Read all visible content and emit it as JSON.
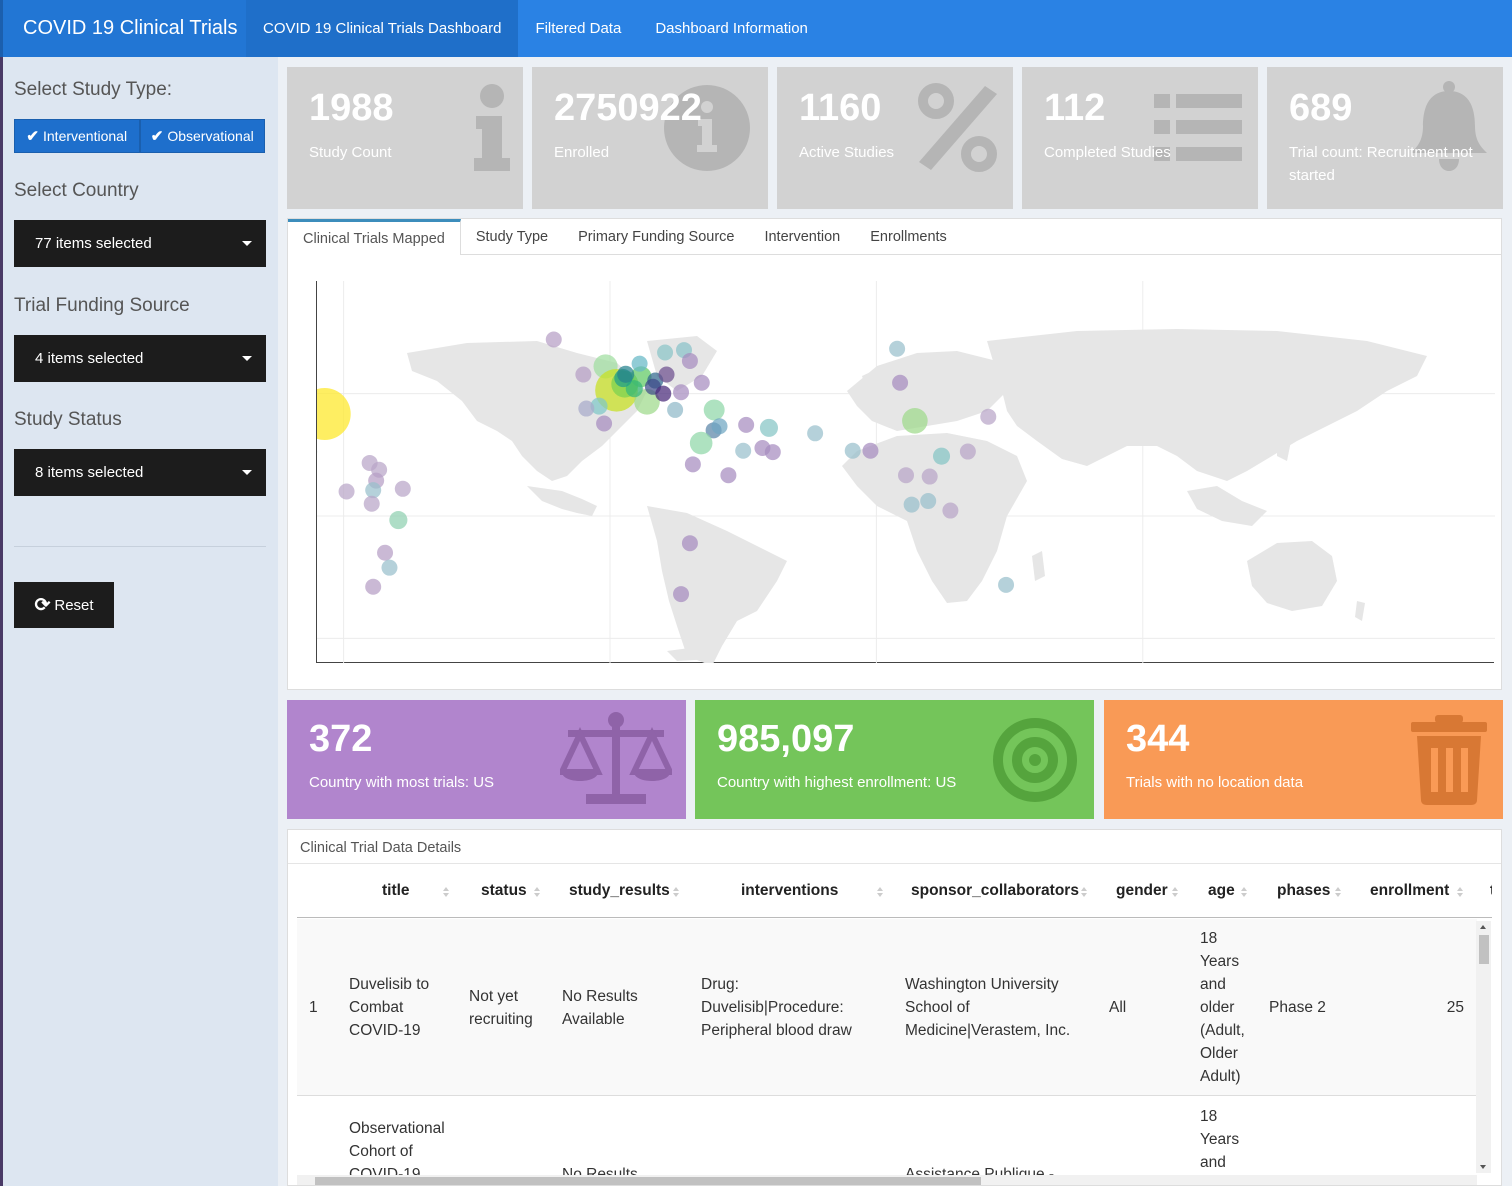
{
  "header": {
    "title": "COVID 19 Clinical Trials",
    "nav": [
      {
        "label": "COVID 19 Clinical Trials Dashboard",
        "active": true
      },
      {
        "label": "Filtered Data",
        "active": false
      },
      {
        "label": "Dashboard Information",
        "active": false
      }
    ]
  },
  "sidebar": {
    "study_type_label": "Select Study Type:",
    "study_types": [
      "Interventional",
      "Observational"
    ],
    "country_label": "Select Country",
    "country_value": "77 items selected",
    "funding_label": "Trial Funding Source",
    "funding_value": "4 items selected",
    "status_label": "Study Status",
    "status_value": "8 items selected",
    "reset_label": "Reset"
  },
  "value_boxes": [
    {
      "value": "1988",
      "caption": "Study Count",
      "icon": "info-icon"
    },
    {
      "value": "2750922",
      "caption": "Enrolled",
      "icon": "info-circle-icon"
    },
    {
      "value": "1160",
      "caption": "Active Studies",
      "icon": "percent-icon"
    },
    {
      "value": "112",
      "caption": "Completed Studies",
      "icon": "list-icon"
    },
    {
      "value": "689",
      "caption": "Trial count: Recruitment not started",
      "icon": "bell-icon"
    }
  ],
  "tabs": [
    "Clinical Trials Mapped",
    "Study Type",
    "Primary Funding Source",
    "Intervention",
    "Enrollments"
  ],
  "colored_boxes": [
    {
      "value": "372",
      "caption": "Country with most trials: US",
      "color": "#b185cd",
      "icon": "balance-scale-icon"
    },
    {
      "value": "985,097",
      "caption": "Country with highest enrollment: US",
      "color": "#74c55a",
      "icon": "bullseye-icon"
    },
    {
      "value": "344",
      "caption": "Trials with no location data",
      "color": "#f99a56",
      "icon": "trash-icon"
    }
  ],
  "table": {
    "title": "Clinical Trial Data Details",
    "columns": [
      "title",
      "status",
      "study_results",
      "interventions",
      "sponsor_collaborators",
      "gender",
      "age",
      "phases",
      "enrollment",
      "t"
    ],
    "rows": [
      {
        "index": "1",
        "title": "Duvelisib to Combat COVID-19",
        "status": "Not yet recruiting",
        "study_results": "No Results Available",
        "interventions": "Drug: Duvelisib|Procedure: Peripheral blood draw",
        "sponsor_collaborators": "Washington University School of Medicine|Verastem, Inc.",
        "gender": "All",
        "age": "18 Years and older (Adult, Older Adult)",
        "phases": "Phase 2",
        "enrollment": "25"
      },
      {
        "index": "",
        "title": "Observational Cohort of COVID-19",
        "status": "",
        "study_results": "No Results",
        "interventions": "",
        "sponsor_collaborators": "Assistance Publique -",
        "gender": "",
        "age": "18 Years and",
        "phases": "",
        "enrollment": ""
      }
    ]
  },
  "map_points": [
    {
      "lon": -96.4,
      "lat": 37.5,
      "count": 372,
      "color": "#fde725"
    },
    {
      "lon": -106.9,
      "lat": 56.1,
      "count": 60,
      "color": "#8fd7a7"
    },
    {
      "lon": -102.0,
      "lat": 23.6,
      "count": 45,
      "color": "#8ec7c7"
    },
    {
      "lon": -81.2,
      "lat": 19.5,
      "count": 12,
      "color": "#b9a5c8"
    },
    {
      "lon": -78.0,
      "lat": 17.0,
      "count": 14,
      "color": "#b9a5c8"
    },
    {
      "lon": -79.0,
      "lat": 13.0,
      "count": 14,
      "color": "#b59ec5"
    },
    {
      "lon": -89.0,
      "lat": 9.0,
      "count": 12,
      "color": "#b9a5c8"
    },
    {
      "lon": -80.0,
      "lat": 9.5,
      "count": 30,
      "color": "#99bfcc"
    },
    {
      "lon": -70.0,
      "lat": 10.0,
      "count": 14,
      "color": "#b9a5c8"
    },
    {
      "lon": -80.5,
      "lat": 4.5,
      "count": 14,
      "color": "#b9a5c8"
    },
    {
      "lon": -71.5,
      "lat": -1.5,
      "count": 45,
      "color": "#8fd0b0"
    },
    {
      "lon": -76.0,
      "lat": -13.5,
      "count": 12,
      "color": "#b59ec5"
    },
    {
      "lon": -74.5,
      "lat": -19.0,
      "count": 25,
      "color": "#99bfcc"
    },
    {
      "lon": -80.0,
      "lat": -26.0,
      "count": 12,
      "color": "#b59ec5"
    },
    {
      "lon": -19.0,
      "lat": 64.9,
      "count": 10,
      "color": "#b59ec5"
    },
    {
      "lon": -9.0,
      "lat": 52.0,
      "count": 14,
      "color": "#b59ec5"
    },
    {
      "lon": -1.5,
      "lat": 55.0,
      "count": 80,
      "color": "#a0dea0"
    },
    {
      "lon": 2.2,
      "lat": 46.2,
      "count": 250,
      "color": "#c7e020"
    },
    {
      "lon": 5.0,
      "lat": 48.5,
      "count": 100,
      "color": "#7ad151"
    },
    {
      "lon": 12.5,
      "lat": 42.0,
      "count": 90,
      "color": "#9ed98a"
    },
    {
      "lon": 10.5,
      "lat": 51.2,
      "count": 60,
      "color": "#5ec962"
    },
    {
      "lon": 8.2,
      "lat": 46.8,
      "count": 40,
      "color": "#35b779"
    },
    {
      "lon": 4.5,
      "lat": 50.7,
      "count": 45,
      "color": "#1f9e89"
    },
    {
      "lon": 5.3,
      "lat": 52.1,
      "count": 40,
      "color": "#26828e"
    },
    {
      "lon": 15.3,
      "lat": 49.8,
      "count": 25,
      "color": "#31688e"
    },
    {
      "lon": 14.5,
      "lat": 47.5,
      "count": 25,
      "color": "#3e4a89"
    },
    {
      "lon": 18.0,
      "lat": 45.0,
      "count": 20,
      "color": "#482878"
    },
    {
      "lon": 19.1,
      "lat": 52.0,
      "count": 20,
      "color": "#6d4f8f"
    },
    {
      "lon": 10.0,
      "lat": 56.0,
      "count": 20,
      "color": "#67b8c6"
    },
    {
      "lon": 18.6,
      "lat": 60.1,
      "count": 30,
      "color": "#8bc5c8"
    },
    {
      "lon": 25.0,
      "lat": 61.0,
      "count": 30,
      "color": "#89c2c9"
    },
    {
      "lon": 27.0,
      "lat": 57.0,
      "count": 14,
      "color": "#a68cbf"
    },
    {
      "lon": 31.0,
      "lat": 49.0,
      "count": 14,
      "color": "#a68cbf"
    },
    {
      "lon": 24.0,
      "lat": 45.5,
      "count": 14,
      "color": "#a68cbf"
    },
    {
      "lon": -3.7,
      "lat": 40.4,
      "count": 40,
      "color": "#7ec8c8"
    },
    {
      "lon": -8.0,
      "lat": 39.5,
      "count": 20,
      "color": "#a7aacb"
    },
    {
      "lon": -2.0,
      "lat": 34.0,
      "count": 12,
      "color": "#a68cbf"
    },
    {
      "lon": 22.0,
      "lat": 39.0,
      "count": 20,
      "color": "#8fb8c8"
    },
    {
      "lon": 35.2,
      "lat": 39.0,
      "count": 60,
      "color": "#8fd7a7"
    },
    {
      "lon": 35.0,
      "lat": 31.5,
      "count": 35,
      "color": "#5a85a8"
    },
    {
      "lon": 37.0,
      "lat": 33.0,
      "count": 25,
      "color": "#6fa6c2"
    },
    {
      "lon": 30.8,
      "lat": 26.8,
      "count": 70,
      "color": "#8fd7a7"
    },
    {
      "lon": 46.0,
      "lat": 33.5,
      "count": 14,
      "color": "#a68cbf"
    },
    {
      "lon": 53.7,
      "lat": 32.4,
      "count": 45,
      "color": "#85c5c5"
    },
    {
      "lon": 45.0,
      "lat": 24.0,
      "count": 30,
      "color": "#99bfcc"
    },
    {
      "lon": 51.5,
      "lat": 25.0,
      "count": 14,
      "color": "#a68cbf"
    },
    {
      "lon": 55.0,
      "lat": 23.5,
      "count": 14,
      "color": "#a68cbf"
    },
    {
      "lon": 69.3,
      "lat": 30.4,
      "count": 30,
      "color": "#99bfcc"
    },
    {
      "lon": 82.0,
      "lat": 24.0,
      "count": 35,
      "color": "#99bfcc"
    },
    {
      "lon": 88.0,
      "lat": 24.0,
      "count": 12,
      "color": "#a68cbf"
    },
    {
      "lon": 103.0,
      "lat": 35.0,
      "count": 90,
      "color": "#9ed98a"
    },
    {
      "lon": 97.0,
      "lat": 61.5,
      "count": 35,
      "color": "#99bfcc"
    },
    {
      "lon": 98.0,
      "lat": 49.0,
      "count": 12,
      "color": "#a68cbf"
    },
    {
      "lon": 127.8,
      "lat": 36.5,
      "count": 14,
      "color": "#b9a5c8"
    },
    {
      "lon": 120.9,
      "lat": 23.7,
      "count": 14,
      "color": "#b9a5c8"
    },
    {
      "lon": 112.0,
      "lat": 22.0,
      "count": 40,
      "color": "#85c5c5"
    },
    {
      "lon": 100.0,
      "lat": 15.0,
      "count": 14,
      "color": "#b9a5c8"
    },
    {
      "lon": 108.0,
      "lat": 14.5,
      "count": 14,
      "color": "#b9a5c8"
    },
    {
      "lon": 101.9,
      "lat": 4.2,
      "count": 25,
      "color": "#99bfcc"
    },
    {
      "lon": 107.5,
      "lat": 5.5,
      "count": 25,
      "color": "#99bfcc"
    },
    {
      "lon": 115.0,
      "lat": 2.0,
      "count": 14,
      "color": "#b9a5c8"
    },
    {
      "lon": 133.8,
      "lat": -25.3,
      "count": 25,
      "color": "#99bfcc"
    },
    {
      "lon": 27.0,
      "lat": -10.0,
      "count": 12,
      "color": "#a68cbf"
    },
    {
      "lon": 24.0,
      "lat": -28.7,
      "count": 12,
      "color": "#a68cbf"
    },
    {
      "lon": 28.0,
      "lat": 19.0,
      "count": 12,
      "color": "#a68cbf"
    },
    {
      "lon": 40.0,
      "lat": 15.0,
      "count": 12,
      "color": "#a68cbf"
    }
  ]
}
